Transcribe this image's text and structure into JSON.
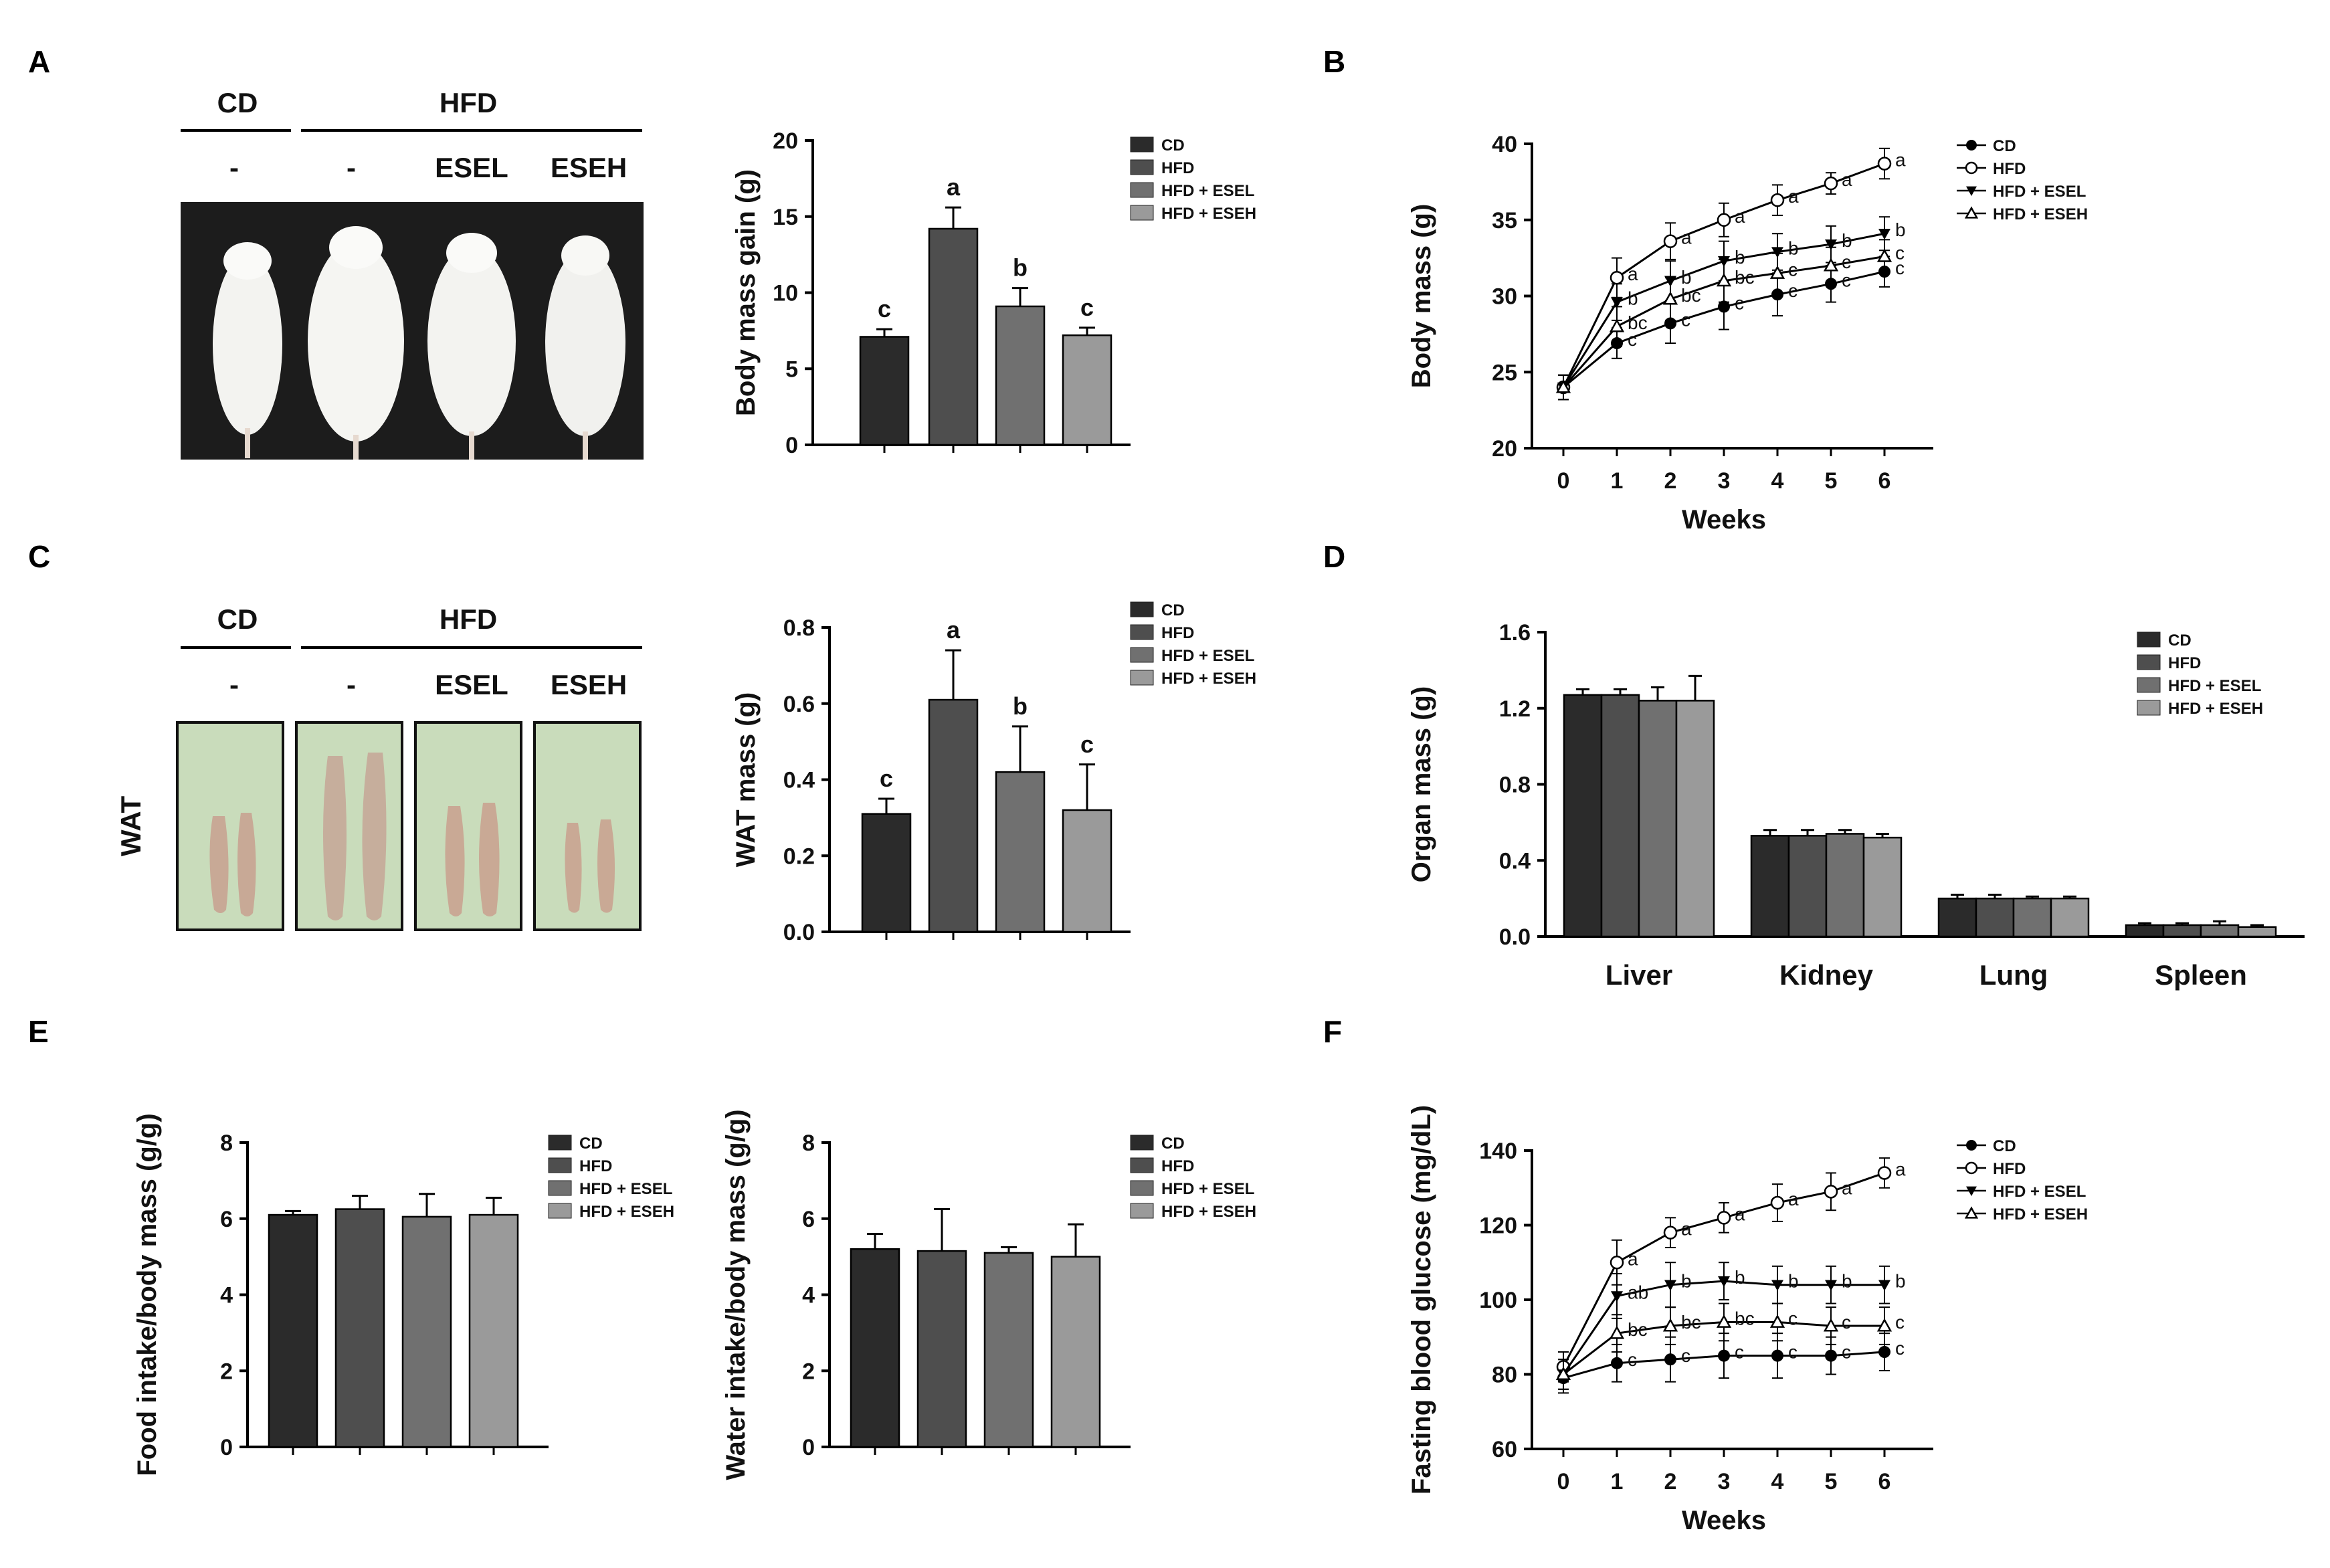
{
  "colors": {
    "CD": "#2b2b2b",
    "HFD": "#4e4e4e",
    "HFD + ESEL": "#707070",
    "HFD + ESEH": "#9a9a9a"
  },
  "panels": {
    "A": {
      "letter": "A",
      "photo_header": {
        "cd": "CD",
        "hfd": "HFD",
        "groups": [
          "-",
          "-",
          "ESEL",
          "ESEH"
        ]
      }
    },
    "C": {
      "letter": "C",
      "photo_header": {
        "cd": "CD",
        "hfd": "HFD",
        "groups": [
          "-",
          "-",
          "ESEL",
          "ESEH"
        ]
      },
      "side_label": "WAT"
    },
    "B": {
      "letter": "B"
    },
    "D": {
      "letter": "D"
    },
    "E": {
      "letter": "E"
    },
    "F": {
      "letter": "F"
    }
  },
  "chart_data": [
    {
      "id": "A_bar",
      "type": "bar",
      "ylabel": "Body mass gain (g)",
      "ylim": [
        0,
        20
      ],
      "yticks": [
        0,
        5,
        10,
        15,
        20
      ],
      "categories": [
        "CD",
        "HFD",
        "HFD + ESEL",
        "HFD + ESEH"
      ],
      "values": [
        7.1,
        14.2,
        9.1,
        7.2
      ],
      "errors": [
        0.5,
        1.4,
        1.2,
        0.5
      ],
      "letters": [
        "c",
        "a",
        "b",
        "c"
      ],
      "legend": [
        "CD",
        "HFD",
        "HFD + ESEL",
        "HFD + ESEH"
      ]
    },
    {
      "id": "C_bar",
      "type": "bar",
      "ylabel": "WAT mass (g)",
      "ylim": [
        0,
        0.8
      ],
      "yticks": [
        "0.0",
        "0.2",
        "0.4",
        "0.6",
        "0.8"
      ],
      "categories": [
        "CD",
        "HFD",
        "HFD + ESEL",
        "HFD + ESEH"
      ],
      "values": [
        0.31,
        0.61,
        0.42,
        0.32
      ],
      "errors": [
        0.04,
        0.13,
        0.12,
        0.12
      ],
      "letters": [
        "c",
        "a",
        "b",
        "c"
      ],
      "legend": [
        "CD",
        "HFD",
        "HFD + ESEL",
        "HFD + ESEH"
      ]
    },
    {
      "id": "E_food",
      "type": "bar",
      "ylabel": "Food intake/body mass (g/g)",
      "ylim": [
        0,
        8
      ],
      "yticks": [
        0,
        2,
        4,
        6,
        8
      ],
      "categories": [
        "CD",
        "HFD",
        "HFD + ESEL",
        "HFD + ESEH"
      ],
      "values": [
        6.1,
        6.25,
        6.05,
        6.1
      ],
      "errors": [
        0.1,
        0.35,
        0.6,
        0.45
      ],
      "letters": [],
      "legend": [
        "CD",
        "HFD",
        "HFD + ESEL",
        "HFD + ESEH"
      ]
    },
    {
      "id": "E_water",
      "type": "bar",
      "ylabel": "Water intake/body mass (g/g)",
      "ylim": [
        0,
        8
      ],
      "yticks": [
        0,
        2,
        4,
        6,
        8
      ],
      "categories": [
        "CD",
        "HFD",
        "HFD + ESEL",
        "HFD + ESEH"
      ],
      "values": [
        5.2,
        5.15,
        5.1,
        5.0
      ],
      "errors": [
        0.4,
        1.1,
        0.15,
        0.85
      ],
      "letters": [],
      "legend": [
        "CD",
        "HFD",
        "HFD + ESEL",
        "HFD + ESEH"
      ]
    },
    {
      "id": "D_grouped",
      "type": "bar",
      "ylabel": "Organ mass (g)",
      "ylim": [
        0,
        1.6
      ],
      "yticks": [
        "0.0",
        "0.4",
        "0.8",
        "1.2",
        "1.6"
      ],
      "categories": [
        "Liver",
        "Kidney",
        "Lung",
        "Spleen"
      ],
      "series": [
        {
          "name": "CD",
          "values": [
            1.27,
            0.53,
            0.2,
            0.06
          ],
          "errors": [
            0.03,
            0.03,
            0.02,
            0.01
          ]
        },
        {
          "name": "HFD",
          "values": [
            1.27,
            0.53,
            0.2,
            0.06
          ],
          "errors": [
            0.03,
            0.03,
            0.02,
            0.01
          ]
        },
        {
          "name": "HFD + ESEL",
          "values": [
            1.24,
            0.54,
            0.2,
            0.06
          ],
          "errors": [
            0.07,
            0.02,
            0.01,
            0.02
          ]
        },
        {
          "name": "HFD + ESEH",
          "values": [
            1.24,
            0.52,
            0.2,
            0.05
          ],
          "errors": [
            0.13,
            0.02,
            0.01,
            0.01
          ]
        }
      ],
      "legend": [
        "CD",
        "HFD",
        "HFD + ESEL",
        "HFD + ESEH"
      ]
    },
    {
      "id": "B_line",
      "type": "line",
      "xlabel": "Weeks",
      "ylabel": "Body mass (g)",
      "x": [
        0,
        1,
        2,
        3,
        4,
        5,
        6
      ],
      "ylim": [
        20,
        40
      ],
      "yticks": [
        20,
        25,
        30,
        35,
        40
      ],
      "series": [
        {
          "name": "CD",
          "marker": "circle-filled",
          "values": [
            24,
            26.9,
            28.2,
            29.3,
            30.1,
            30.8,
            31.6
          ],
          "errors": [
            0.8,
            1.0,
            1.3,
            1.5,
            1.4,
            1.2,
            1.0
          ],
          "letters": [
            "",
            "c",
            "c",
            "c",
            "c",
            "c",
            "c"
          ]
        },
        {
          "name": "HFD",
          "marker": "circle-open",
          "values": [
            24,
            31.2,
            33.6,
            35.0,
            36.3,
            37.4,
            38.7
          ],
          "errors": [
            0.8,
            1.3,
            1.2,
            1.1,
            1.0,
            0.7,
            1.0
          ],
          "letters": [
            "",
            "a",
            "a",
            "a",
            "a",
            "a",
            "a"
          ]
        },
        {
          "name": "HFD + ESEL",
          "marker": "triangle-down-filled",
          "values": [
            24,
            29.6,
            31.0,
            32.3,
            32.9,
            33.4,
            34.1
          ],
          "errors": [
            0.8,
            1.2,
            1.3,
            1.3,
            1.2,
            1.2,
            1.1
          ],
          "letters": [
            "",
            "b",
            "b",
            "b",
            "b",
            "b",
            "b"
          ]
        },
        {
          "name": "HFD + ESEH",
          "marker": "triangle-up-open",
          "values": [
            24,
            28.0,
            29.8,
            31.0,
            31.5,
            32.0,
            32.6
          ],
          "errors": [
            0.8,
            1.3,
            1.4,
            1.4,
            1.3,
            1.2,
            1.1
          ],
          "letters": [
            "",
            "bc",
            "bc",
            "bc",
            "c",
            "c",
            "c"
          ]
        }
      ],
      "legend": [
        "CD",
        "HFD",
        "HFD + ESEL",
        "HFD + ESEH"
      ]
    },
    {
      "id": "F_line",
      "type": "line",
      "xlabel": "Weeks",
      "ylabel": "Fasting blood glucose (mg/dL)",
      "x": [
        0,
        1,
        2,
        3,
        4,
        5,
        6
      ],
      "ylim": [
        60,
        140
      ],
      "yticks": [
        60,
        80,
        100,
        120,
        140
      ],
      "series": [
        {
          "name": "CD",
          "marker": "circle-filled",
          "values": [
            79,
            83,
            84,
            85,
            85,
            85,
            86
          ],
          "errors": [
            4,
            5,
            6,
            6,
            6,
            5,
            5
          ],
          "letters": [
            "",
            "c",
            "c",
            "c",
            "c",
            "c",
            "c"
          ]
        },
        {
          "name": "HFD",
          "marker": "circle-open",
          "values": [
            82,
            110,
            118,
            122,
            126,
            129,
            134
          ],
          "errors": [
            4,
            6,
            4,
            4,
            5,
            5,
            4
          ],
          "letters": [
            "",
            "a",
            "a",
            "a",
            "a",
            "a",
            "a"
          ]
        },
        {
          "name": "HFD + ESEL",
          "marker": "triangle-down-filled",
          "values": [
            80,
            101,
            104,
            105,
            104,
            104,
            104
          ],
          "errors": [
            4,
            6,
            6,
            5,
            5,
            5,
            5
          ],
          "letters": [
            "",
            "ab",
            "b",
            "b",
            "b",
            "b",
            "b"
          ]
        },
        {
          "name": "HFD + ESEH",
          "marker": "triangle-up-open",
          "values": [
            80,
            91,
            93,
            94,
            94,
            93,
            93
          ],
          "errors": [
            4,
            5,
            5,
            5,
            5,
            5,
            5
          ],
          "letters": [
            "",
            "bc",
            "bc",
            "bc",
            "c",
            "c",
            "c"
          ]
        }
      ],
      "legend": [
        "CD",
        "HFD",
        "HFD + ESEL",
        "HFD + ESEH"
      ]
    }
  ]
}
